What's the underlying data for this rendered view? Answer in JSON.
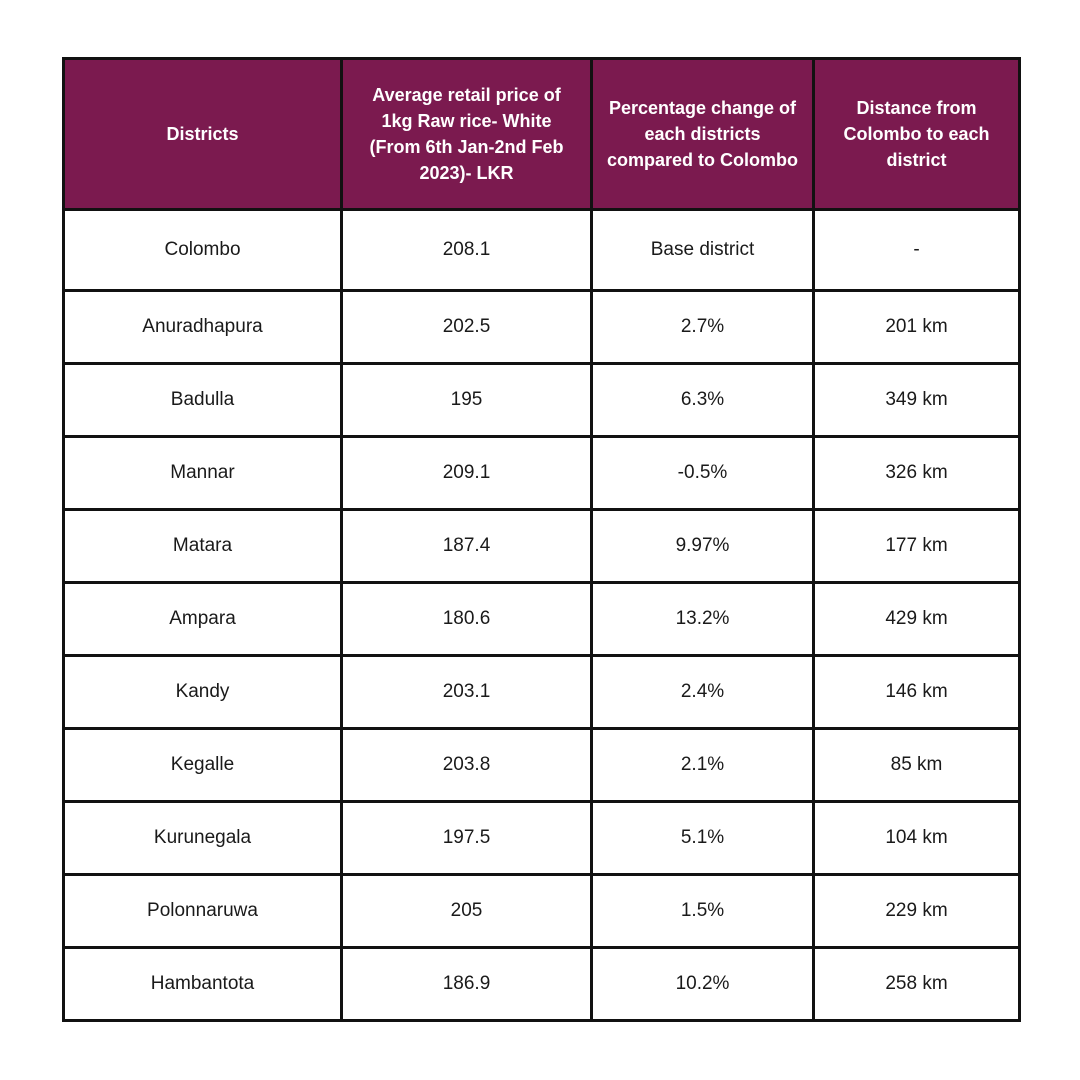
{
  "colors": {
    "header_bg": "#7b1a4f",
    "header_text": "#ffffff",
    "border": "#111111",
    "body_text": "#1a1a1a"
  },
  "table": {
    "headers": [
      "Districts",
      "Average retail price of 1kg Raw rice- White (From 6th Jan-2nd Feb 2023)- LKR",
      "Percentage change of each districts compared to Colombo",
      "Distance from Colombo to each district"
    ],
    "rows": [
      [
        "Colombo",
        "208.1",
        "Base district",
        "-"
      ],
      [
        "Anuradhapura",
        "202.5",
        "2.7%",
        "201 km"
      ],
      [
        "Badulla",
        "195",
        "6.3%",
        "349 km"
      ],
      [
        "Mannar",
        "209.1",
        "-0.5%",
        "326 km"
      ],
      [
        "Matara",
        "187.4",
        "9.97%",
        "177 km"
      ],
      [
        "Ampara",
        "180.6",
        "13.2%",
        "429 km"
      ],
      [
        "Kandy",
        "203.1",
        "2.4%",
        "146 km"
      ],
      [
        "Kegalle",
        "203.8",
        "2.1%",
        "85 km"
      ],
      [
        "Kurunegala",
        "197.5",
        "5.1%",
        "104 km"
      ],
      [
        "Polonnaruwa",
        "205",
        "1.5%",
        "229 km"
      ],
      [
        "Hambantota",
        "186.9",
        "10.2%",
        "258 km"
      ]
    ]
  }
}
